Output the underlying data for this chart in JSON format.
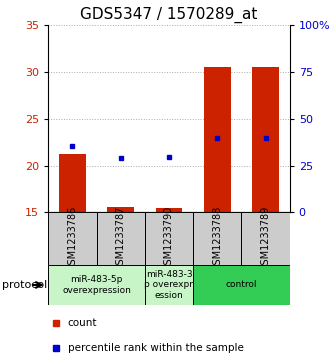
{
  "title": "GDS5347 / 1570289_at",
  "samples": [
    "GSM1233786",
    "GSM1233787",
    "GSM1233790",
    "GSM1233788",
    "GSM1233789"
  ],
  "red_values": [
    21.2,
    15.6,
    15.5,
    30.5,
    30.6
  ],
  "blue_values": [
    22.1,
    20.8,
    20.9,
    23.0,
    23.0
  ],
  "ylim_left": [
    15,
    35
  ],
  "ylim_right": [
    0,
    100
  ],
  "yticks_left": [
    15,
    20,
    25,
    30,
    35
  ],
  "yticks_right": [
    0,
    25,
    50,
    75,
    100
  ],
  "ytick_labels_right": [
    "0",
    "25",
    "50",
    "75",
    "100%"
  ],
  "protocol_groups": [
    {
      "label": "miR-483-5p\noverexpression",
      "samples": [
        0,
        1
      ],
      "color": "#c8f5c8"
    },
    {
      "label": "miR-483-3\np overexpr\nession",
      "samples": [
        2
      ],
      "color": "#c8f5c8"
    },
    {
      "label": "control",
      "samples": [
        3,
        4
      ],
      "color": "#33cc55"
    }
  ],
  "baseline": 15,
  "bar_width": 0.55,
  "bar_color": "#cc2200",
  "dot_color": "#0000cc",
  "legend_bar_label": "count",
  "legend_dot_label": "percentile rank within the sample",
  "protocol_label": "protocol",
  "sample_box_color": "#cccccc",
  "grid_color": "#aaaaaa",
  "title_fontsize": 11,
  "tick_fontsize": 8,
  "sample_label_fontsize": 7,
  "protocol_fontsize": 8,
  "legend_fontsize": 7.5
}
